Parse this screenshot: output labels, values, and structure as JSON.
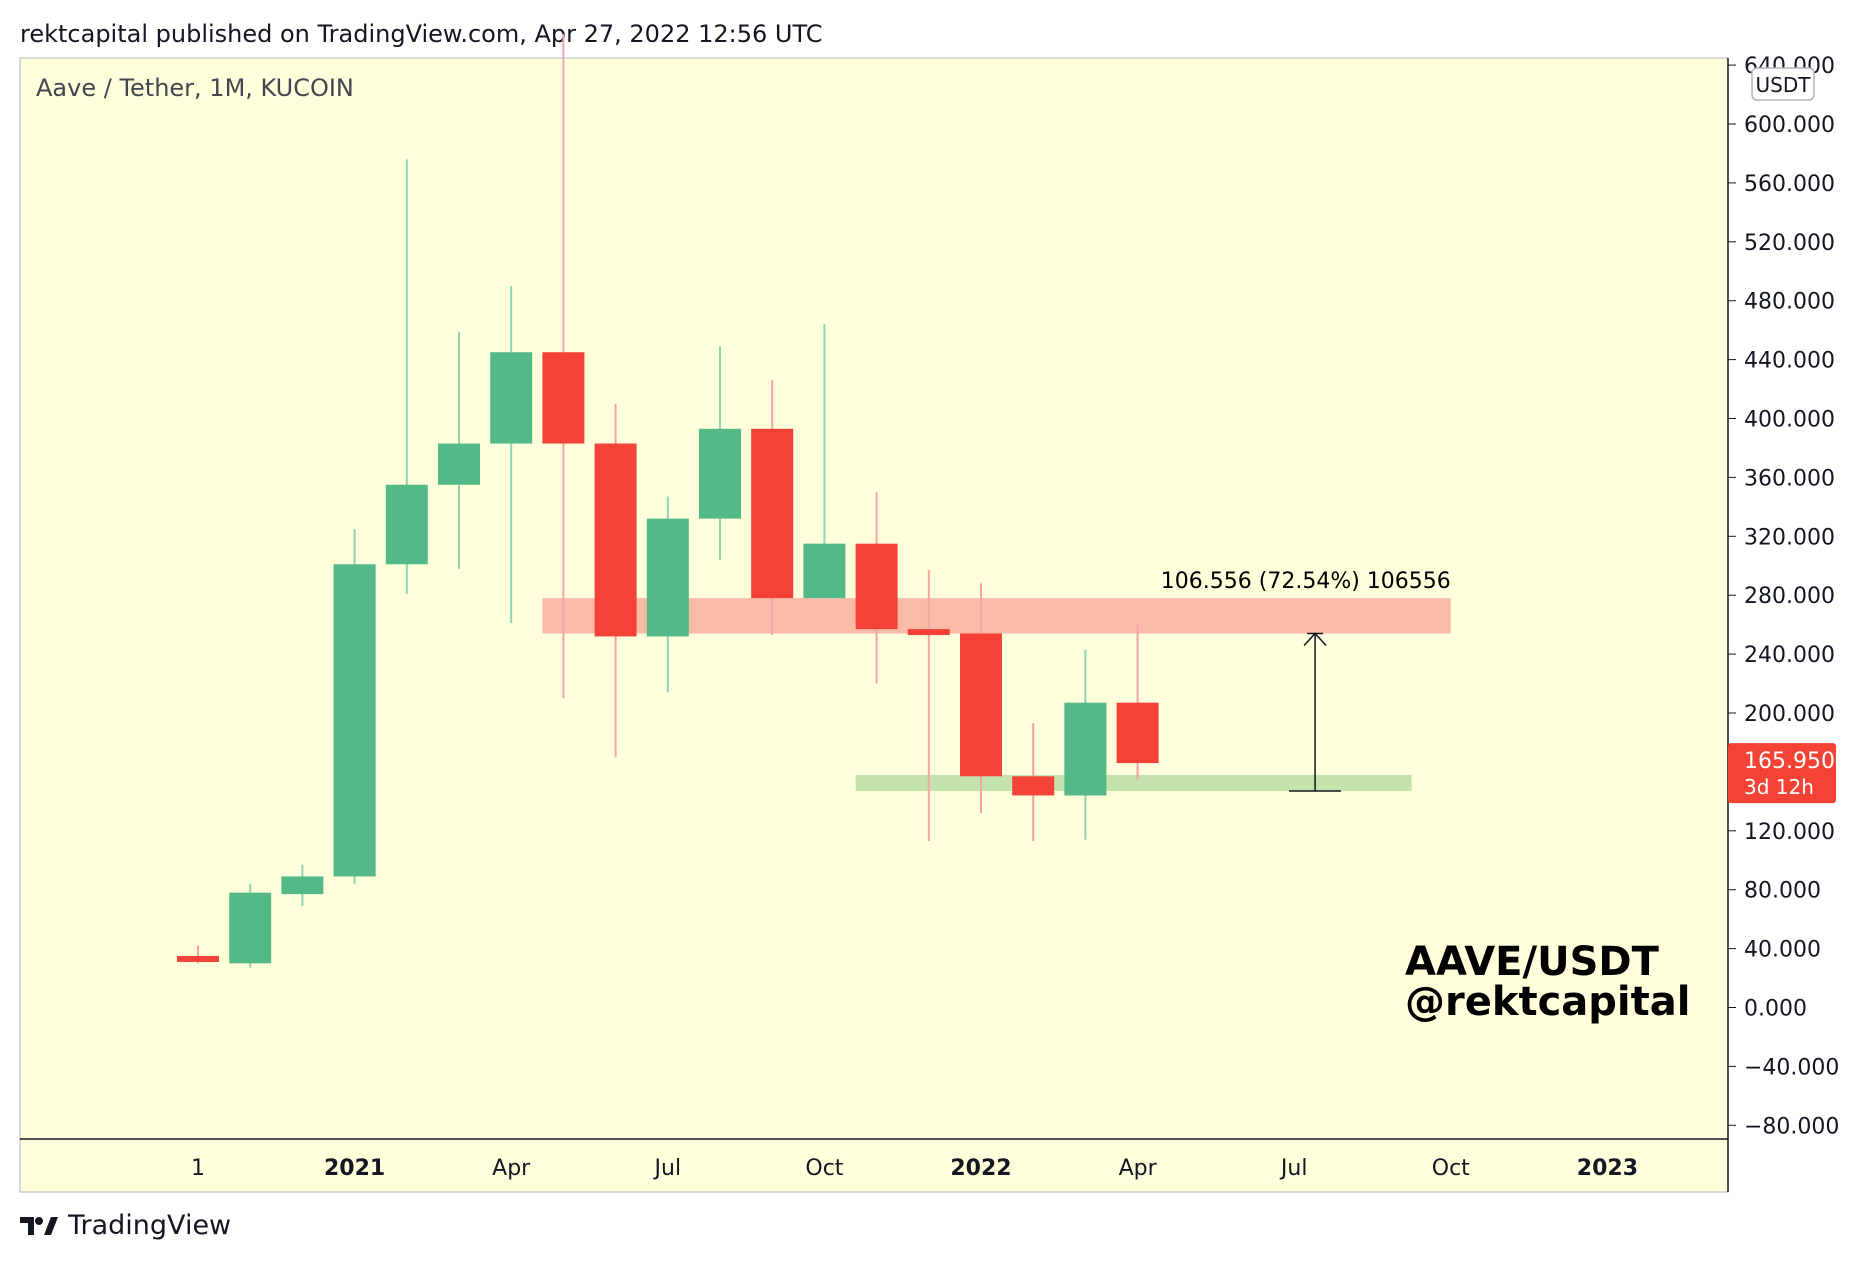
{
  "header": {
    "publisher_line": "rektcapital published on TradingView.com, Apr 27, 2022 12:56 UTC"
  },
  "footer": {
    "brand": "TradingView",
    "logo_icon": "tradingview-logo-icon"
  },
  "colors": {
    "background": "#ffffdc",
    "up": "#53b987",
    "down": "#f44336",
    "resistance_zone": "#f9bba6",
    "support_zone": "#c5e3ad",
    "price_tag": "#f44336"
  },
  "chart_data": {
    "type": "candlestick",
    "title": "Aave / Tether, 1M, KUCOIN",
    "timeframe": "1M",
    "ylim": [
      -90,
      650
    ],
    "ylabel": "USDT",
    "y_tick_labels": [
      "640.000",
      "600.000",
      "560.000",
      "520.000",
      "480.000",
      "440.000",
      "400.000",
      "360.000",
      "320.000",
      "280.000",
      "240.000",
      "200.000",
      "160.000",
      "120.000",
      "80.000",
      "40.000",
      "0.000",
      "−40.000",
      "−80.000"
    ],
    "y_tick_values": [
      640,
      600,
      560,
      520,
      480,
      440,
      400,
      360,
      320,
      280,
      240,
      200,
      160,
      120,
      80,
      40,
      0,
      -40,
      -80
    ],
    "x_tick_labels": [
      {
        "label": "1",
        "index": 0,
        "bold": false
      },
      {
        "label": "2021",
        "index": 3,
        "bold": true
      },
      {
        "label": "Apr",
        "index": 6,
        "bold": false
      },
      {
        "label": "Jul",
        "index": 9,
        "bold": false
      },
      {
        "label": "Oct",
        "index": 12,
        "bold": false
      },
      {
        "label": "2022",
        "index": 15,
        "bold": true
      },
      {
        "label": "Apr",
        "index": 18,
        "bold": false
      },
      {
        "label": "Jul",
        "index": 21,
        "bold": false
      },
      {
        "label": "Oct",
        "index": 24,
        "bold": false
      },
      {
        "label": "2023",
        "index": 27,
        "bold": true
      }
    ],
    "candles": [
      {
        "month": "2020-10",
        "open": 35,
        "high": 42,
        "low": 30,
        "close": 31
      },
      {
        "month": "2020-11",
        "open": 30,
        "high": 84,
        "low": 27,
        "close": 78
      },
      {
        "month": "2020-12",
        "open": 77,
        "high": 97,
        "low": 69,
        "close": 89
      },
      {
        "month": "2021-01",
        "open": 89,
        "high": 325,
        "low": 84,
        "close": 301
      },
      {
        "month": "2021-02",
        "open": 301,
        "high": 576,
        "low": 281,
        "close": 355
      },
      {
        "month": "2021-03",
        "open": 355,
        "high": 459,
        "low": 298,
        "close": 383
      },
      {
        "month": "2021-04",
        "open": 383,
        "high": 490,
        "low": 261,
        "close": 445
      },
      {
        "month": "2021-05",
        "open": 445,
        "high": 661,
        "low": 210,
        "close": 383
      },
      {
        "month": "2021-06",
        "open": 383,
        "high": 410,
        "low": 170,
        "close": 252
      },
      {
        "month": "2021-07",
        "open": 252,
        "high": 347,
        "low": 214,
        "close": 332
      },
      {
        "month": "2021-08",
        "open": 332,
        "high": 449,
        "low": 304,
        "close": 393
      },
      {
        "month": "2021-09",
        "open": 393,
        "high": 426,
        "low": 253,
        "close": 278
      },
      {
        "month": "2021-10",
        "open": 278,
        "high": 464,
        "low": 278,
        "close": 315
      },
      {
        "month": "2021-11",
        "open": 315,
        "high": 350,
        "low": 220,
        "close": 257
      },
      {
        "month": "2021-12",
        "open": 257,
        "high": 297,
        "low": 113,
        "close": 254
      },
      {
        "month": "2022-01",
        "open": 254,
        "high": 288,
        "low": 132,
        "close": 157
      },
      {
        "month": "2022-02",
        "open": 157,
        "high": 193,
        "low": 113,
        "close": 144
      },
      {
        "month": "2022-03",
        "open": 144,
        "high": 243,
        "low": 114,
        "close": 207
      },
      {
        "month": "2022-04",
        "open": 207,
        "high": 260,
        "low": 155,
        "close": 166
      }
    ],
    "zones": [
      {
        "name": "resistance",
        "low": 254,
        "high": 278,
        "from_index": 7,
        "to_index": 24.0
      },
      {
        "name": "support",
        "low": 147,
        "high": 158,
        "from_index": 13,
        "to_index": 23.25
      }
    ],
    "measure": {
      "from_value": 147,
      "to_value": 254,
      "at_index": 21.4,
      "label": "106.556 (72.54%) 106556"
    },
    "last_price": {
      "value": "165.950",
      "countdown": "3d 12h",
      "numeric": 165.95
    },
    "watermark": {
      "line1": "AAVE/USDT",
      "line2": "@rektcapital"
    }
  }
}
